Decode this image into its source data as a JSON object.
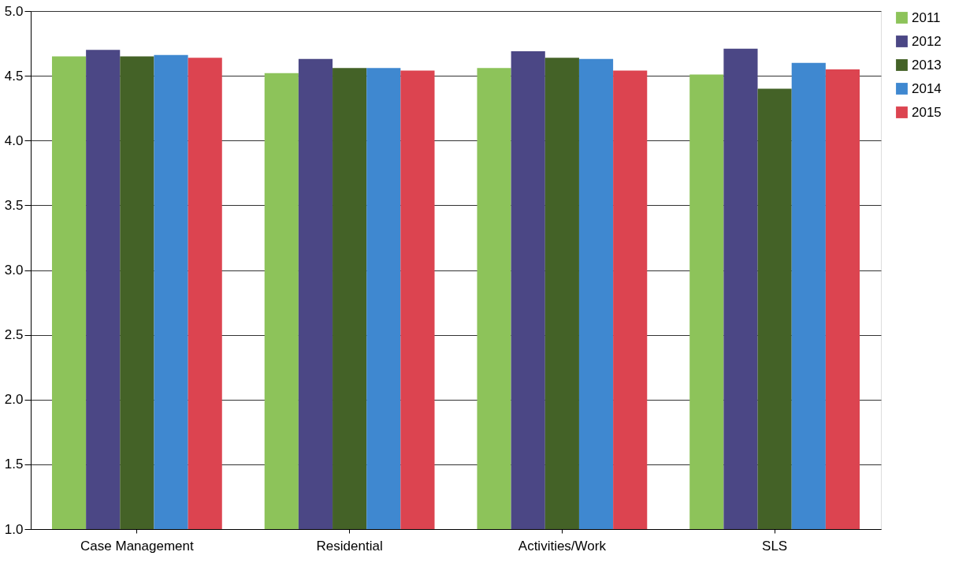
{
  "chart_data": {
    "type": "bar",
    "categories": [
      "Case Management",
      "Residential",
      "Activities/Work",
      "SLS"
    ],
    "series": [
      {
        "name": "2011",
        "color": "#8dc35a",
        "values": [
          4.65,
          4.52,
          4.56,
          4.51
        ]
      },
      {
        "name": "2012",
        "color": "#4b4785",
        "values": [
          4.7,
          4.63,
          4.69,
          4.71
        ]
      },
      {
        "name": "2013",
        "color": "#446227",
        "values": [
          4.65,
          4.56,
          4.64,
          4.4
        ]
      },
      {
        "name": "2014",
        "color": "#3f88d0",
        "values": [
          4.66,
          4.56,
          4.63,
          4.6
        ]
      },
      {
        "name": "2015",
        "color": "#dc4450",
        "values": [
          4.64,
          4.54,
          4.54,
          4.55
        ]
      }
    ],
    "ylim": [
      1.0,
      5.0
    ],
    "yticks": [
      {
        "value": 1.0,
        "label": "1.0"
      },
      {
        "value": 1.5,
        "label": "1.5"
      },
      {
        "value": 2.0,
        "label": "2.0"
      },
      {
        "value": 2.5,
        "label": "2.5"
      },
      {
        "value": 3.0,
        "label": "3.0"
      },
      {
        "value": 3.5,
        "label": "3.5"
      },
      {
        "value": 4.0,
        "label": "4.0"
      },
      {
        "value": 4.5,
        "label": "4.5"
      },
      {
        "value": 5.0,
        "label": "5.0"
      }
    ],
    "grid": "y",
    "legend": "right"
  }
}
